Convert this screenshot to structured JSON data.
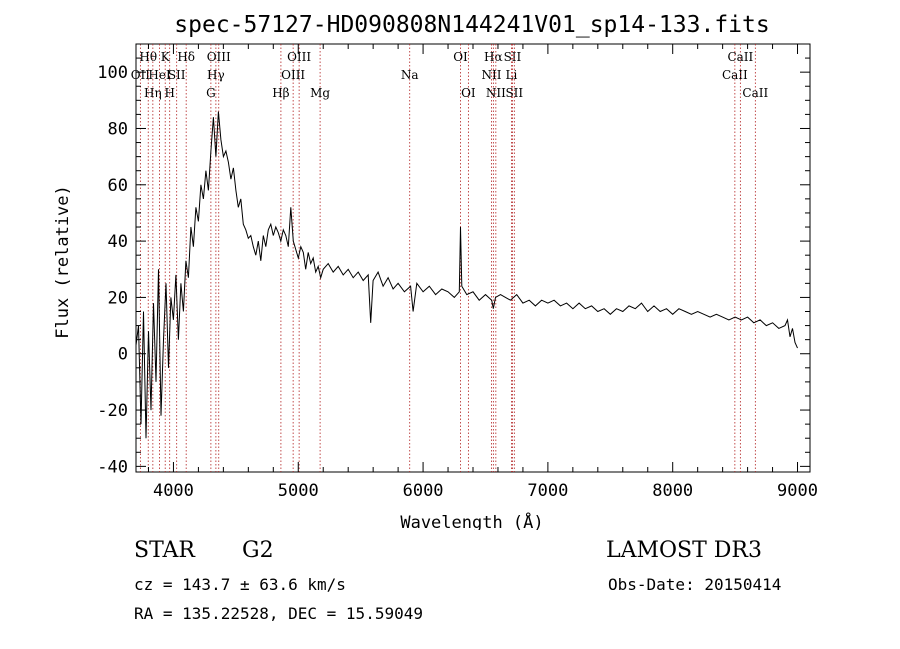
{
  "chart_data": {
    "type": "line",
    "title": "spec-57127-HD090808N144241V01_sp14-133.fits",
    "xlabel": "Wavelength (Å)",
    "ylabel": "Flux (relative)",
    "xlim": [
      3700,
      9100
    ],
    "ylim": [
      -42,
      110
    ],
    "x_ticks": [
      4000,
      5000,
      6000,
      7000,
      8000,
      9000
    ],
    "y_ticks": [
      -40,
      -20,
      0,
      20,
      40,
      60,
      80,
      100
    ],
    "grid": false,
    "series": [
      {
        "color": "#000000",
        "points": [
          [
            3700,
            3
          ],
          [
            3720,
            10
          ],
          [
            3740,
            -25
          ],
          [
            3760,
            15
          ],
          [
            3780,
            -30
          ],
          [
            3800,
            8
          ],
          [
            3820,
            -20
          ],
          [
            3840,
            18
          ],
          [
            3860,
            -10
          ],
          [
            3880,
            30
          ],
          [
            3900,
            -22
          ],
          [
            3920,
            5
          ],
          [
            3940,
            25
          ],
          [
            3960,
            -5
          ],
          [
            3980,
            20
          ],
          [
            4000,
            12
          ],
          [
            4020,
            28
          ],
          [
            4040,
            5
          ],
          [
            4060,
            25
          ],
          [
            4080,
            15
          ],
          [
            4100,
            33
          ],
          [
            4120,
            27
          ],
          [
            4140,
            45
          ],
          [
            4160,
            38
          ],
          [
            4180,
            52
          ],
          [
            4200,
            47
          ],
          [
            4220,
            60
          ],
          [
            4240,
            55
          ],
          [
            4260,
            65
          ],
          [
            4280,
            58
          ],
          [
            4300,
            72
          ],
          [
            4320,
            84
          ],
          [
            4340,
            70
          ],
          [
            4360,
            86
          ],
          [
            4380,
            76
          ],
          [
            4400,
            70
          ],
          [
            4420,
            72
          ],
          [
            4440,
            68
          ],
          [
            4460,
            62
          ],
          [
            4480,
            66
          ],
          [
            4500,
            58
          ],
          [
            4520,
            52
          ],
          [
            4540,
            55
          ],
          [
            4560,
            46
          ],
          [
            4580,
            44
          ],
          [
            4600,
            41
          ],
          [
            4620,
            42
          ],
          [
            4640,
            38
          ],
          [
            4660,
            35
          ],
          [
            4680,
            40
          ],
          [
            4700,
            33
          ],
          [
            4720,
            42
          ],
          [
            4740,
            38
          ],
          [
            4760,
            44
          ],
          [
            4780,
            46
          ],
          [
            4800,
            42
          ],
          [
            4820,
            45
          ],
          [
            4840,
            43
          ],
          [
            4860,
            40
          ],
          [
            4880,
            44
          ],
          [
            4900,
            42
          ],
          [
            4920,
            38
          ],
          [
            4940,
            52
          ],
          [
            4960,
            40
          ],
          [
            4980,
            37
          ],
          [
            5000,
            34
          ],
          [
            5020,
            38
          ],
          [
            5040,
            36
          ],
          [
            5060,
            30
          ],
          [
            5080,
            36
          ],
          [
            5100,
            32
          ],
          [
            5120,
            34
          ],
          [
            5140,
            29
          ],
          [
            5160,
            31
          ],
          [
            5180,
            27
          ],
          [
            5200,
            30
          ],
          [
            5240,
            32
          ],
          [
            5280,
            29
          ],
          [
            5320,
            31
          ],
          [
            5360,
            28
          ],
          [
            5400,
            30
          ],
          [
            5440,
            27
          ],
          [
            5480,
            29
          ],
          [
            5520,
            26
          ],
          [
            5560,
            28
          ],
          [
            5580,
            11
          ],
          [
            5600,
            26
          ],
          [
            5640,
            29
          ],
          [
            5680,
            24
          ],
          [
            5720,
            27
          ],
          [
            5760,
            23
          ],
          [
            5800,
            25
          ],
          [
            5850,
            22
          ],
          [
            5900,
            24
          ],
          [
            5920,
            15
          ],
          [
            5950,
            25
          ],
          [
            6000,
            22
          ],
          [
            6050,
            24
          ],
          [
            6100,
            21
          ],
          [
            6150,
            23
          ],
          [
            6200,
            22
          ],
          [
            6250,
            20
          ],
          [
            6290,
            22
          ],
          [
            6300,
            45
          ],
          [
            6310,
            24
          ],
          [
            6350,
            21
          ],
          [
            6400,
            22
          ],
          [
            6450,
            19
          ],
          [
            6500,
            21
          ],
          [
            6550,
            19
          ],
          [
            6563,
            16
          ],
          [
            6580,
            20
          ],
          [
            6620,
            21
          ],
          [
            6660,
            20
          ],
          [
            6700,
            19
          ],
          [
            6750,
            21
          ],
          [
            6800,
            18
          ],
          [
            6850,
            19
          ],
          [
            6900,
            17
          ],
          [
            6950,
            19
          ],
          [
            7000,
            18
          ],
          [
            7050,
            19
          ],
          [
            7100,
            17
          ],
          [
            7150,
            18
          ],
          [
            7200,
            16
          ],
          [
            7250,
            18
          ],
          [
            7300,
            16
          ],
          [
            7350,
            17
          ],
          [
            7400,
            15
          ],
          [
            7450,
            16
          ],
          [
            7500,
            14
          ],
          [
            7550,
            16
          ],
          [
            7600,
            15
          ],
          [
            7650,
            17
          ],
          [
            7700,
            16
          ],
          [
            7750,
            18
          ],
          [
            7800,
            15
          ],
          [
            7850,
            17
          ],
          [
            7900,
            15
          ],
          [
            7950,
            16
          ],
          [
            8000,
            14
          ],
          [
            8050,
            16
          ],
          [
            8100,
            15
          ],
          [
            8150,
            14
          ],
          [
            8200,
            15
          ],
          [
            8250,
            14
          ],
          [
            8300,
            13
          ],
          [
            8350,
            14
          ],
          [
            8400,
            13
          ],
          [
            8450,
            12
          ],
          [
            8500,
            13
          ],
          [
            8550,
            12
          ],
          [
            8600,
            13
          ],
          [
            8650,
            11
          ],
          [
            8700,
            12
          ],
          [
            8750,
            10
          ],
          [
            8800,
            11
          ],
          [
            8850,
            9
          ],
          [
            8900,
            10
          ],
          [
            8920,
            12
          ],
          [
            8940,
            6
          ],
          [
            8960,
            9
          ],
          [
            8980,
            4
          ],
          [
            9000,
            2
          ]
        ]
      }
    ],
    "lines": [
      {
        "x": 3735,
        "labels": [
          "OII"
        ],
        "row": 1
      },
      {
        "x": 3798,
        "labels": [
          "Hθ"
        ],
        "row": 0
      },
      {
        "x": 3835,
        "labels": [
          "Hη"
        ],
        "row": 2
      },
      {
        "x": 3889,
        "labels": [
          "HeI"
        ],
        "row": 1
      },
      {
        "x": 3934,
        "labels": [
          "K"
        ],
        "row": 0
      },
      {
        "x": 3970,
        "labels": [
          "H"
        ],
        "row": 2
      },
      {
        "x": 4026,
        "labels": [
          "SII"
        ],
        "row": 1
      },
      {
        "x": 4102,
        "labels": [
          "Hδ"
        ],
        "row": 0
      },
      {
        "x": 4300,
        "labels": [
          "G"
        ],
        "row": 2
      },
      {
        "x": 4340,
        "labels": [
          "Hγ"
        ],
        "row": 1
      },
      {
        "x": 4363,
        "labels": [
          "OIII"
        ],
        "row": 0
      },
      {
        "x": 4861,
        "labels": [
          "Hβ"
        ],
        "row": 2
      },
      {
        "x": 4959,
        "labels": [
          "OIII"
        ],
        "row": 1
      },
      {
        "x": 5007,
        "labels": [
          "OIII"
        ],
        "row": 0
      },
      {
        "x": 5175,
        "labels": [
          "Mg"
        ],
        "row": 2
      },
      {
        "x": 5893,
        "labels": [
          "Na"
        ],
        "row": 1
      },
      {
        "x": 6300,
        "labels": [
          "OI"
        ],
        "row": 0
      },
      {
        "x": 6363,
        "labels": [
          "OI"
        ],
        "row": 2
      },
      {
        "x": 6548,
        "labels": [
          "NII"
        ],
        "row": 1
      },
      {
        "x": 6563,
        "labels": [
          "Hα"
        ],
        "row": 0
      },
      {
        "x": 6583,
        "labels": [
          "NII"
        ],
        "row": 2
      },
      {
        "x": 6708,
        "labels": [
          "Li"
        ],
        "row": 1
      },
      {
        "x": 6716,
        "labels": [
          "SII"
        ],
        "row": 0
      },
      {
        "x": 6731,
        "labels": [
          "SII"
        ],
        "row": 2
      },
      {
        "x": 8498,
        "labels": [
          "CaII"
        ],
        "row": 1
      },
      {
        "x": 8542,
        "labels": [
          "CaII"
        ],
        "row": 0
      },
      {
        "x": 8662,
        "labels": [
          "CaII"
        ],
        "row": 2
      }
    ]
  },
  "info": {
    "class": "STAR",
    "subclass": "G2",
    "survey": "LAMOST DR3",
    "cz": "cz = 143.7 ± 63.6 km/s",
    "obs_date": "Obs-Date: 20150414",
    "radec": "RA = 135.22528, DEC =  15.59049"
  },
  "colors": {
    "spectrum": "#000000",
    "line_marker": "#b22222"
  }
}
